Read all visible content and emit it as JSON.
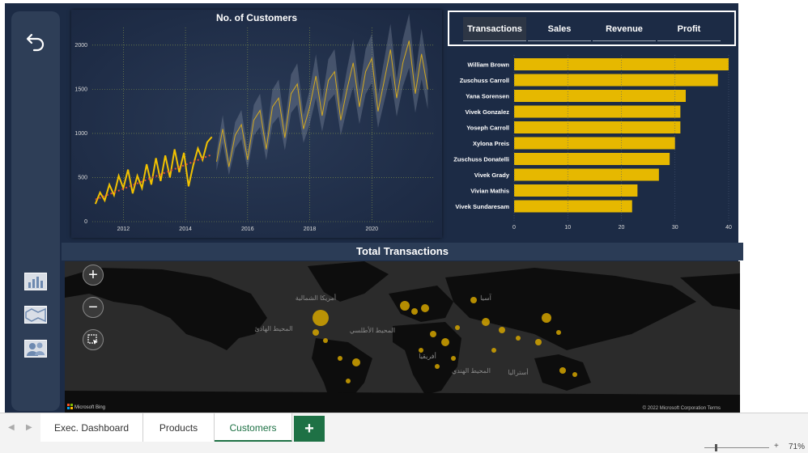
{
  "nav": {
    "back_icon": "undo-arrow-icon",
    "items": [
      {
        "name": "bar-chart-icon"
      },
      {
        "name": "map-icon"
      },
      {
        "name": "users-icon"
      }
    ]
  },
  "customers_chart": {
    "title": "No. of Customers"
  },
  "tabs": [
    {
      "label": "Transactions",
      "active": true
    },
    {
      "label": "Sales",
      "active": false
    },
    {
      "label": "Revenue",
      "active": false
    },
    {
      "label": "Profit",
      "active": false
    }
  ],
  "map": {
    "title": "Total Transactions",
    "zoom_in": "+",
    "zoom_out": "−",
    "attribution_left": "Microsoft Bing",
    "attribution_right": "© 2022 Microsoft Corporation Terms",
    "labels": [
      "أمريكا الشمالية",
      "المحيط الهادئ",
      "المحيط الأطلسي",
      "أفريقيا",
      "آسيا",
      "المحيط الهندي",
      "أستراليا"
    ]
  },
  "sheets": [
    {
      "label": "Exec. Dashboard",
      "active": false
    },
    {
      "label": "Products",
      "active": false
    },
    {
      "label": "Customers",
      "active": true
    }
  ],
  "add_sheet": "+",
  "zoom": "71%",
  "colors": {
    "accent": "#e6b800",
    "background": "#1c2b45",
    "sheet_green": "#1e7145"
  },
  "chart_data": [
    {
      "type": "line",
      "title": "No. of Customers",
      "xlabel": "",
      "ylabel": "",
      "xlim": [
        2011,
        2022
      ],
      "ylim": [
        0,
        2200
      ],
      "x_ticks": [
        "2012",
        "2014",
        "2016",
        "2018",
        "2020"
      ],
      "y_ticks": [
        "0",
        "500",
        "1000",
        "1500",
        "2000"
      ],
      "grid": true,
      "series": [
        {
          "name": "",
          "kind": "actual",
          "x": [
            2011.1,
            2011.25,
            2011.4,
            2011.55,
            2011.7,
            2011.85,
            2012.0,
            2012.15,
            2012.3,
            2012.45,
            2012.6,
            2012.75,
            2012.9,
            2013.05,
            2013.2,
            2013.35,
            2013.5,
            2013.65,
            2013.8,
            2013.95,
            2014.1,
            2014.25,
            2014.4,
            2014.55,
            2014.7,
            2014.85
          ],
          "y": [
            200,
            330,
            240,
            420,
            300,
            520,
            380,
            590,
            320,
            520,
            380,
            650,
            420,
            720,
            460,
            750,
            500,
            820,
            560,
            780,
            400,
            640,
            830,
            700,
            900,
            960
          ]
        },
        {
          "name": "",
          "kind": "forecast",
          "x": [
            2015.0,
            2015.2,
            2015.4,
            2015.6,
            2015.8,
            2016.0,
            2016.2,
            2016.4,
            2016.6,
            2016.8,
            2017.0,
            2017.2,
            2017.4,
            2017.6,
            2017.8,
            2018.0,
            2018.2,
            2018.4,
            2018.6,
            2018.8,
            2019.0,
            2019.2,
            2019.4,
            2019.6,
            2019.8,
            2020.0,
            2020.2,
            2020.4,
            2020.6,
            2020.8,
            2021.0,
            2021.2,
            2021.4,
            2021.6,
            2021.8
          ],
          "y": [
            680,
            1050,
            620,
            980,
            1100,
            700,
            1150,
            1260,
            820,
            1300,
            1400,
            950,
            1450,
            1560,
            1050,
            1300,
            1650,
            1200,
            1600,
            1700,
            1150,
            1500,
            1800,
            1300,
            1700,
            1850,
            1250,
            1600,
            1950,
            1400,
            1800,
            2050,
            1450,
            1900,
            1500
          ]
        },
        {
          "name": "",
          "kind": "trend",
          "x": [
            2011.1,
            2014.85
          ],
          "y": [
            250,
            760
          ]
        }
      ]
    },
    {
      "type": "bar",
      "orientation": "horizontal",
      "title": "",
      "xlabel": "",
      "ylabel": "",
      "xlim": [
        0,
        40
      ],
      "x_ticks": [
        "0",
        "10",
        "20",
        "30",
        "40"
      ],
      "categories": [
        "William Brown",
        "Zuschuss Carroll",
        "Yana Sorensen",
        "Vivek Gonzalez",
        "Yoseph Carroll",
        "Xylona Preis",
        "Zuschuss Donatelli",
        "Vivek Grady",
        "Vivian Mathis",
        "Vivek Sundaresam"
      ],
      "values": [
        40,
        38,
        32,
        31,
        31,
        30,
        29,
        27,
        23,
        22
      ],
      "color": "#e6b800"
    }
  ]
}
